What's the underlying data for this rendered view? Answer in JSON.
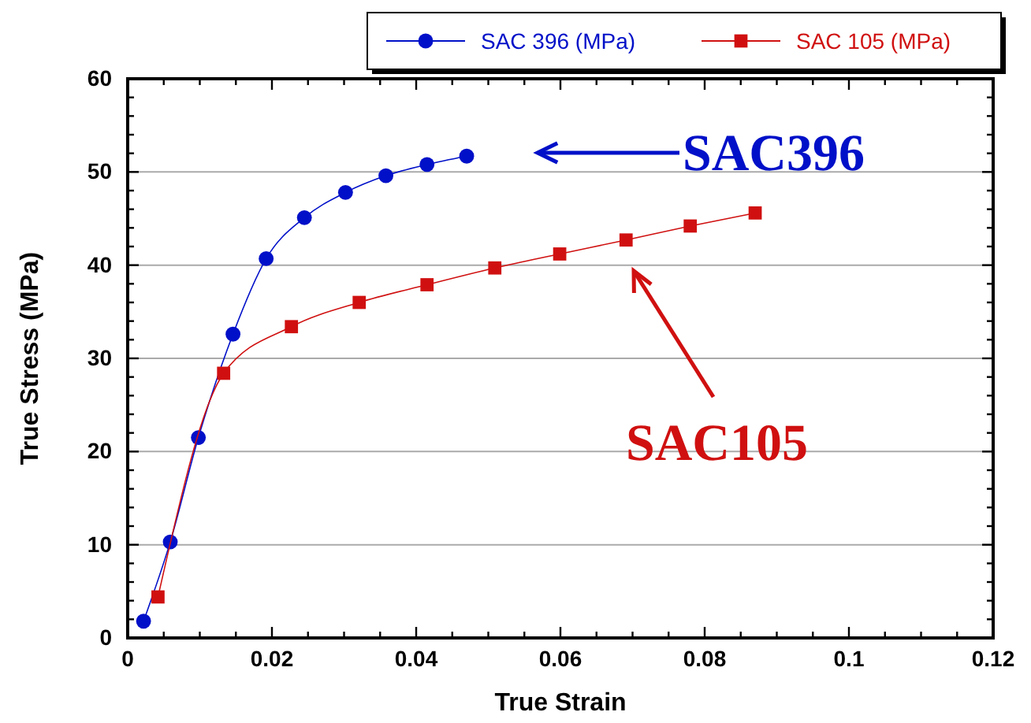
{
  "chart_data": {
    "type": "line",
    "xlabel": "True Strain",
    "ylabel": "True Stress (MPa)",
    "xlim": [
      0,
      0.12
    ],
    "ylim": [
      0,
      60
    ],
    "xticks": [
      0,
      {
        "value": 0.005,
        "label": null
      },
      {
        "value": 0.01,
        "label": null
      },
      {
        "value": 0.015,
        "label": null
      },
      0.02,
      {
        "value": 0.025,
        "label": null
      },
      {
        "value": 0.03,
        "label": null
      },
      {
        "value": 0.035,
        "label": null
      },
      0.04,
      {
        "value": 0.045,
        "label": null
      },
      {
        "value": 0.05,
        "label": null
      },
      {
        "value": 0.055,
        "label": null
      },
      0.06,
      {
        "value": 0.065,
        "label": null
      },
      {
        "value": 0.07,
        "label": null
      },
      {
        "value": 0.075,
        "label": null
      },
      0.08,
      {
        "value": 0.085,
        "label": null
      },
      {
        "value": 0.09,
        "label": null
      },
      {
        "value": 0.095,
        "label": null
      },
      0.1,
      {
        "value": 0.105,
        "label": null
      },
      {
        "value": 0.11,
        "label": null
      },
      {
        "value": 0.115,
        "label": null
      },
      0.12
    ],
    "yticks": [
      0,
      {
        "value": 2,
        "label": null
      },
      {
        "value": 4,
        "label": null
      },
      {
        "value": 6,
        "label": null
      },
      {
        "value": 8,
        "label": null
      },
      10,
      {
        "value": 12,
        "label": null
      },
      {
        "value": 14,
        "label": null
      },
      {
        "value": 16,
        "label": null
      },
      {
        "value": 18,
        "label": null
      },
      20,
      {
        "value": 22,
        "label": null
      },
      {
        "value": 24,
        "label": null
      },
      {
        "value": 26,
        "label": null
      },
      {
        "value": 28,
        "label": null
      },
      30,
      {
        "value": 32,
        "label": null
      },
      {
        "value": 34,
        "label": null
      },
      {
        "value": 36,
        "label": null
      },
      {
        "value": 38,
        "label": null
      },
      40,
      {
        "value": 42,
        "label": null
      },
      {
        "value": 44,
        "label": null
      },
      {
        "value": 46,
        "label": null
      },
      {
        "value": 48,
        "label": null
      },
      50,
      {
        "value": 52,
        "label": null
      },
      {
        "value": 54,
        "label": null
      },
      {
        "value": 56,
        "label": null
      },
      {
        "value": 58,
        "label": null
      },
      60
    ],
    "grid": "y",
    "legend": "top right",
    "series": [
      {
        "name": "SAC 396 (MPa)",
        "color": "#0010c8",
        "marker": "circle",
        "x": [
          0.0022,
          0.0059,
          0.0098,
          0.0146,
          0.0192,
          0.0245,
          0.0302,
          0.0358,
          0.0415,
          0.047
        ],
        "values": [
          1.8,
          10.3,
          21.5,
          32.6,
          40.7,
          45.1,
          47.8,
          49.6,
          50.8,
          51.7
        ]
      },
      {
        "name": "SAC 105 (MPa)",
        "color": "#d01010",
        "marker": "square",
        "x": [
          0.0042,
          0.0133,
          0.0227,
          0.0321,
          0.0415,
          0.0509,
          0.0599,
          0.0691,
          0.078,
          0.087
        ],
        "values": [
          4.4,
          28.4,
          33.4,
          36.0,
          37.9,
          39.7,
          41.2,
          42.7,
          44.2,
          45.6
        ]
      }
    ],
    "annotations": [
      "SAC396",
      "SAC105"
    ]
  }
}
